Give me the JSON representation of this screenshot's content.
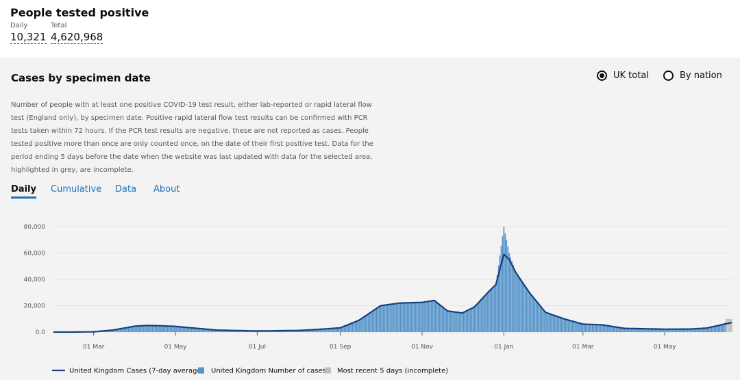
{
  "headline": {
    "title": "People tested positive",
    "daily_label": "Daily",
    "daily_value": "10,321",
    "total_label": "Total",
    "total_value": "4,620,968"
  },
  "card": {
    "title": "Cases by specimen date",
    "radio_uk": "UK total",
    "radio_nation": "By nation",
    "selected": "UK total",
    "description": "Number of people with at least one positive COVID-19 test result, either lab-reported or rapid lateral flow test (England only), by specimen date. Positive rapid lateral flow test results can be confirmed with PCR tests taken within 72 hours. If the PCR test results are negative, these are not reported as cases. People tested positive more than once are only counted once, on the date of their first positive test. Data for the period ending 5 days before the date when the website was last updated with data for the selected area, highlighted in grey, are incomplete.",
    "tabs": [
      "Daily",
      "Cumulative",
      "Data",
      "About"
    ],
    "active_tab": "Daily"
  },
  "chart_data": {
    "type": "bar",
    "x_ticks": [
      "01 Mar",
      "01 May",
      "01 Jul",
      "01 Sep",
      "01 Nov",
      "01 Jan",
      "01 Mar",
      "01 May"
    ],
    "y_ticks": [
      "0.0",
      "20,000",
      "40,000",
      "60,000",
      "80,000"
    ],
    "ylim": [
      0,
      80000
    ],
    "grid": true,
    "legend": [
      "United Kingdom Cases (7-day average)",
      "United Kingdom Number of cases",
      "Most recent 5 days (incomplete)"
    ],
    "legend_placement": "bottom",
    "colors": {
      "bar": "#5694ca",
      "line": "#12407f",
      "incomplete": "#bdbdbd",
      "grid": "#e3e3e3",
      "axis": "#505a5f"
    },
    "series": [
      {
        "name": "United Kingdom Cases (7-day average)",
        "x": [
          "2020-01-31",
          "2020-02-15",
          "2020-03-01",
          "2020-03-15",
          "2020-04-01",
          "2020-04-10",
          "2020-04-20",
          "2020-05-01",
          "2020-05-15",
          "2020-06-01",
          "2020-07-01",
          "2020-08-01",
          "2020-08-15",
          "2020-09-01",
          "2020-09-15",
          "2020-10-01",
          "2020-10-15",
          "2020-11-01",
          "2020-11-10",
          "2020-11-20",
          "2020-12-01",
          "2020-12-10",
          "2020-12-20",
          "2020-12-26",
          "2021-01-01",
          "2021-01-05",
          "2021-01-10",
          "2021-01-20",
          "2021-02-01",
          "2021-02-15",
          "2021-03-01",
          "2021-03-15",
          "2021-04-01",
          "2021-05-01",
          "2021-05-20",
          "2021-06-01",
          "2021-06-10",
          "2021-06-20"
        ],
        "values": [
          0,
          0,
          200,
          1500,
          4500,
          5000,
          4800,
          4300,
          3000,
          1500,
          800,
          1200,
          2000,
          3200,
          9000,
          20000,
          22000,
          22500,
          24000,
          16000,
          14500,
          19000,
          30000,
          36000,
          59000,
          55000,
          45000,
          30000,
          15000,
          10000,
          6000,
          5500,
          2800,
          2200,
          2300,
          3000,
          5000,
          7200
        ]
      },
      {
        "name": "United Kingdom Number of cases",
        "x": [
          "2020-01-31",
          "2020-02-15",
          "2020-03-01",
          "2020-03-15",
          "2020-04-01",
          "2020-04-10",
          "2020-04-20",
          "2020-05-01",
          "2020-05-15",
          "2020-06-01",
          "2020-07-01",
          "2020-08-01",
          "2020-08-15",
          "2020-09-01",
          "2020-09-15",
          "2020-10-01",
          "2020-10-15",
          "2020-11-01",
          "2020-11-10",
          "2020-11-20",
          "2020-12-01",
          "2020-12-10",
          "2020-12-20",
          "2020-12-26",
          "2021-01-01",
          "2021-01-05",
          "2021-01-10",
          "2021-01-20",
          "2021-02-01",
          "2021-02-15",
          "2021-03-01",
          "2021-03-15",
          "2021-04-01",
          "2021-05-01",
          "2021-05-20",
          "2021-06-01",
          "2021-06-10",
          "2021-06-15"
        ],
        "values": [
          0,
          0,
          200,
          1500,
          4500,
          5000,
          4800,
          4300,
          3000,
          1500,
          800,
          1200,
          2000,
          3200,
          9000,
          20000,
          22000,
          22500,
          24000,
          16000,
          14500,
          19000,
          30000,
          36000,
          80000,
          60000,
          45000,
          30000,
          15000,
          10000,
          6000,
          5500,
          2800,
          2200,
          2300,
          3000,
          5000,
          7200
        ]
      }
    ],
    "incomplete_period": {
      "from": "2021-06-16",
      "to": "2021-06-20",
      "approx_value": 10000
    }
  }
}
